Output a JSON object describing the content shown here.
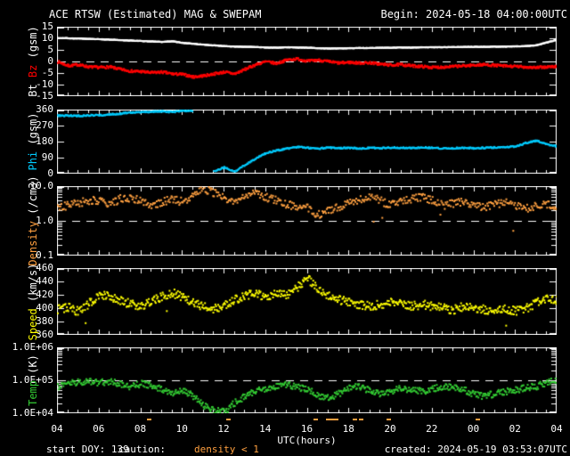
{
  "header": {
    "title": "ACE RTSW (Estimated) MAG & SWEPAM",
    "begin_label": "Begin: 2024-05-18 04:00:00UTC"
  },
  "footer": {
    "start_doy": "start DOY: 139",
    "caution_label": "caution:",
    "caution_value": "density < 1",
    "created": "created: 2024-05-19 03:53:07UTC"
  },
  "x_axis": {
    "label": "UTC(hours)",
    "tick_labels": [
      "04",
      "06",
      "08",
      "10",
      "12",
      "14",
      "16",
      "18",
      "20",
      "22",
      "00",
      "02",
      "04"
    ],
    "start_hour": 4,
    "end_hour": 28,
    "major_step_hours": 2,
    "minor_step_hours": 0.5
  },
  "colors": {
    "background": "#000000",
    "frame": "#ffffff",
    "bt": "#ffffff",
    "bz": "#ff0000",
    "phi": "#00ccff",
    "density": "#ffa040",
    "speed": "#ffff00",
    "temp": "#33cc33",
    "caution": "#ffa040"
  },
  "chart_data": {
    "type": "scatter",
    "x": {
      "start_hour": 4,
      "step_hours": 0.5
    },
    "caution_hours": [
      8.4,
      12.2,
      16.4,
      17.0,
      17.2,
      17.4,
      18.3,
      18.6,
      19.9,
      24.2
    ],
    "panels": [
      {
        "id": "mag",
        "scale": "linear",
        "ylim": [
          -15,
          15
        ],
        "top": 30,
        "h": 78,
        "dash_at": 0,
        "grid": false,
        "ylabel_segments": [
          {
            "text": "Bt ",
            "color": "#ffffff"
          },
          {
            "text": "Bz",
            "color": "#ff0000"
          },
          {
            "text": " (gsm)",
            "color": "#ffffff"
          }
        ],
        "yticks": [
          {
            "v": 15,
            "l": "15"
          },
          {
            "v": 10,
            "l": "10"
          },
          {
            "v": 5,
            "l": "5"
          },
          {
            "v": 0,
            "l": "0"
          },
          {
            "v": -5,
            "l": "-5"
          },
          {
            "v": -10,
            "l": "-10"
          },
          {
            "v": -15,
            "l": "-15"
          }
        ],
        "series": [
          {
            "name": "Bz",
            "color": "#ff0000",
            "step_min": 1.5,
            "jitter": 0.55,
            "size": 2,
            "jump": 5,
            "values": [
              0.3,
              -1.5,
              -1.0,
              -2.0,
              -2.2,
              -2.0,
              -3.0,
              -3.8,
              -4.0,
              -4.5,
              -4.2,
              -5.0,
              -5.2,
              -6.3,
              -5.8,
              -5.0,
              -4.2,
              -5.0,
              -3.0,
              -1.0,
              0.3,
              -0.5,
              1.0,
              1.5,
              0.5,
              1.0,
              0.3,
              -0.3,
              0.0,
              -0.3,
              -0.2,
              -0.8,
              -1.2,
              -1.0,
              -1.5,
              -1.8,
              -2.2,
              -2.0,
              -1.8,
              -1.5,
              -1.2,
              -1.0,
              -1.3,
              -1.6,
              -1.8,
              -2.0,
              -2.3,
              -2.0,
              -1.8
            ]
          },
          {
            "name": "Bt",
            "color": "#ffffff",
            "step_min": 1.5,
            "jitter": 0.1,
            "size": 2,
            "jump": 5,
            "values": [
              10.5,
              10.4,
              10.3,
              10.1,
              10.0,
              9.8,
              9.6,
              9.4,
              9.2,
              9.0,
              8.8,
              9.1,
              8.4,
              8.0,
              7.6,
              7.3,
              7.0,
              6.8,
              6.7,
              6.6,
              6.4,
              6.3,
              6.5,
              6.4,
              6.3,
              6.1,
              6.0,
              6.0,
              6.1,
              6.2,
              6.2,
              6.3,
              6.3,
              6.4,
              6.4,
              6.5,
              6.5,
              6.5,
              6.6,
              6.6,
              6.7,
              6.7,
              6.8,
              6.8,
              6.9,
              7.0,
              7.4,
              8.6,
              9.8
            ]
          }
        ]
      },
      {
        "id": "phi",
        "scale": "linear",
        "ylim": [
          0,
          360
        ],
        "top": 123,
        "h": 72,
        "dash_at": null,
        "grid": false,
        "ylabel_segments": [
          {
            "text": "Phi",
            "color": "#00ccff"
          },
          {
            "text": " (gsm)",
            "color": "#ffffff"
          }
        ],
        "yticks": [
          {
            "v": 360,
            "l": "360"
          },
          {
            "v": 270,
            "l": "270"
          },
          {
            "v": 180,
            "l": "180"
          },
          {
            "v": 90,
            "l": "90"
          },
          {
            "v": 0,
            "l": "0"
          }
        ],
        "series": [
          {
            "name": "Phi",
            "color": "#00ccff",
            "step_min": 2,
            "jitter": 4,
            "size": 2,
            "jump": 90,
            "values": [
              330,
              331,
              330,
              332,
              333,
              338,
              342,
              348,
              350,
              352,
              356,
              350,
              357,
              358,
              null,
              20,
              40,
              15,
              55,
              90,
              120,
              135,
              145,
              155,
              150,
              145,
              152,
              148,
              150,
              146,
              150,
              148,
              152,
              150,
              148,
              152,
              150,
              146,
              148,
              150,
              148,
              150,
              152,
              154,
              158,
              178,
              190,
              168,
              158
            ]
          }
        ]
      },
      {
        "id": "density",
        "scale": "log",
        "ylim": [
          0.1,
          10
        ],
        "top": 209,
        "h": 78,
        "dash_at": 1.0,
        "grid": false,
        "ylabel_segments": [
          {
            "text": "Density",
            "color": "#ffa040"
          },
          {
            "text": " (/cm3)",
            "color": "#ffffff"
          }
        ],
        "yticks": [
          {
            "v": 10,
            "l": "10.0"
          },
          {
            "v": 1,
            "l": "1.0"
          },
          {
            "v": 0.1,
            "l": "0.1"
          }
        ],
        "series": [
          {
            "name": "Density",
            "color": "#ffa040",
            "step_min": 2.5,
            "jitter": 0.12,
            "size": 2,
            "jump": 0.5,
            "outlier": [
              0.005,
              -0.55
            ],
            "values": [
              2.5,
              3.0,
              3.5,
              4.2,
              4.0,
              3.2,
              4.5,
              5.0,
              4.0,
              3.0,
              3.5,
              4.5,
              3.8,
              6.0,
              9.0,
              7.0,
              5.0,
              4.0,
              5.5,
              6.5,
              5.0,
              4.0,
              3.2,
              2.8,
              2.4,
              1.6,
              2.0,
              2.6,
              3.4,
              4.5,
              5.5,
              4.0,
              3.0,
              3.6,
              4.5,
              5.0,
              4.0,
              3.0,
              3.4,
              4.0,
              3.0,
              2.6,
              3.2,
              3.8,
              3.0,
              2.4,
              2.8,
              3.2,
              2.6
            ]
          }
        ]
      },
      {
        "id": "speed",
        "scale": "linear",
        "ylim": [
          360,
          460
        ],
        "top": 301,
        "h": 75,
        "dash_at": null,
        "grid": false,
        "ylabel_segments": [
          {
            "text": "Speed",
            "color": "#ffff00"
          },
          {
            "text": " (km/s)",
            "color": "#ffffff"
          }
        ],
        "yticks": [
          {
            "v": 460,
            "l": "460"
          },
          {
            "v": 440,
            "l": "440"
          },
          {
            "v": 420,
            "l": "420"
          },
          {
            "v": 400,
            "l": "400"
          },
          {
            "v": 380,
            "l": "380"
          },
          {
            "v": 360,
            "l": "360"
          }
        ],
        "series": [
          {
            "name": "Speed",
            "color": "#ffff00",
            "step_min": 2,
            "jitter": 6.5,
            "size": 2,
            "jump": 30,
            "outlier": [
              0.006,
              -22
            ],
            "values": [
              400,
              402,
              396,
              408,
              422,
              418,
              412,
              408,
              404,
              412,
              418,
              424,
              418,
              410,
              404,
              400,
              406,
              414,
              420,
              424,
              418,
              423,
              420,
              432,
              446,
              430,
              420,
              414,
              410,
              407,
              404,
              407,
              411,
              407,
              404,
              407,
              404,
              401,
              399,
              404,
              401,
              399,
              397,
              400,
              397,
              401,
              409,
              417,
              412
            ]
          }
        ]
      },
      {
        "id": "temp",
        "scale": "log",
        "ylim": [
          10000,
          1000000
        ],
        "top": 390,
        "h": 74,
        "dash_at": 100000,
        "grid": false,
        "ylabel_segments": [
          {
            "text": "Temp",
            "color": "#33cc33"
          },
          {
            "text": " (K)",
            "color": "#ffffff"
          }
        ],
        "yticks": [
          {
            "v": 1000000,
            "l": "1.0E+06"
          },
          {
            "v": 100000,
            "l": "1.0E+05"
          },
          {
            "v": 10000,
            "l": "1.0E+04"
          }
        ],
        "series": [
          {
            "name": "Temp",
            "color": "#33cc33",
            "step_min": 2,
            "jitter": 0.1,
            "size": 2,
            "jump": 0.6,
            "values": [
              70000,
              85000,
              95000,
              100000,
              90000,
              100000,
              80000,
              65000,
              85000,
              75000,
              55000,
              45000,
              55000,
              35000,
              18000,
              13000,
              12000,
              22000,
              35000,
              50000,
              60000,
              70000,
              80000,
              65000,
              55000,
              38000,
              30000,
              42000,
              60000,
              70000,
              50000,
              40000,
              50000,
              60000,
              55000,
              48000,
              60000,
              65000,
              70000,
              55000,
              40000,
              35000,
              42000,
              48000,
              55000,
              62000,
              70000,
              90000,
              105000
            ]
          }
        ]
      }
    ]
  }
}
